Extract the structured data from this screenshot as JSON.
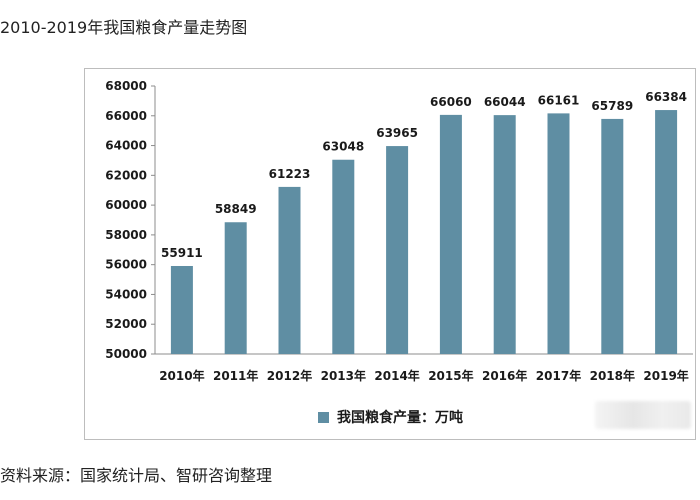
{
  "title": "2010-2019年我国粮食产量走势图",
  "source": "资料来源：国家统计局、智研咨询整理",
  "colors": {
    "bar": "#5f8ea3",
    "axis": "#8c8c8c"
  },
  "chart_data": {
    "type": "bar",
    "title": "",
    "xlabel": "",
    "ylabel": "",
    "categories": [
      "2010年",
      "2011年",
      "2012年",
      "2013年",
      "2014年",
      "2015年",
      "2016年",
      "2017年",
      "2018年",
      "2019年"
    ],
    "ylim": [
      50000,
      68000
    ],
    "yticks": [
      50000,
      52000,
      54000,
      56000,
      58000,
      60000,
      62000,
      64000,
      66000,
      68000
    ],
    "grid": false,
    "legend_position": "bottom",
    "series": [
      {
        "name": "我国粮食产量：万吨",
        "values": [
          55911,
          58849,
          61223,
          63048,
          63965,
          66060,
          66044,
          66161,
          65789,
          66384
        ]
      }
    ]
  }
}
